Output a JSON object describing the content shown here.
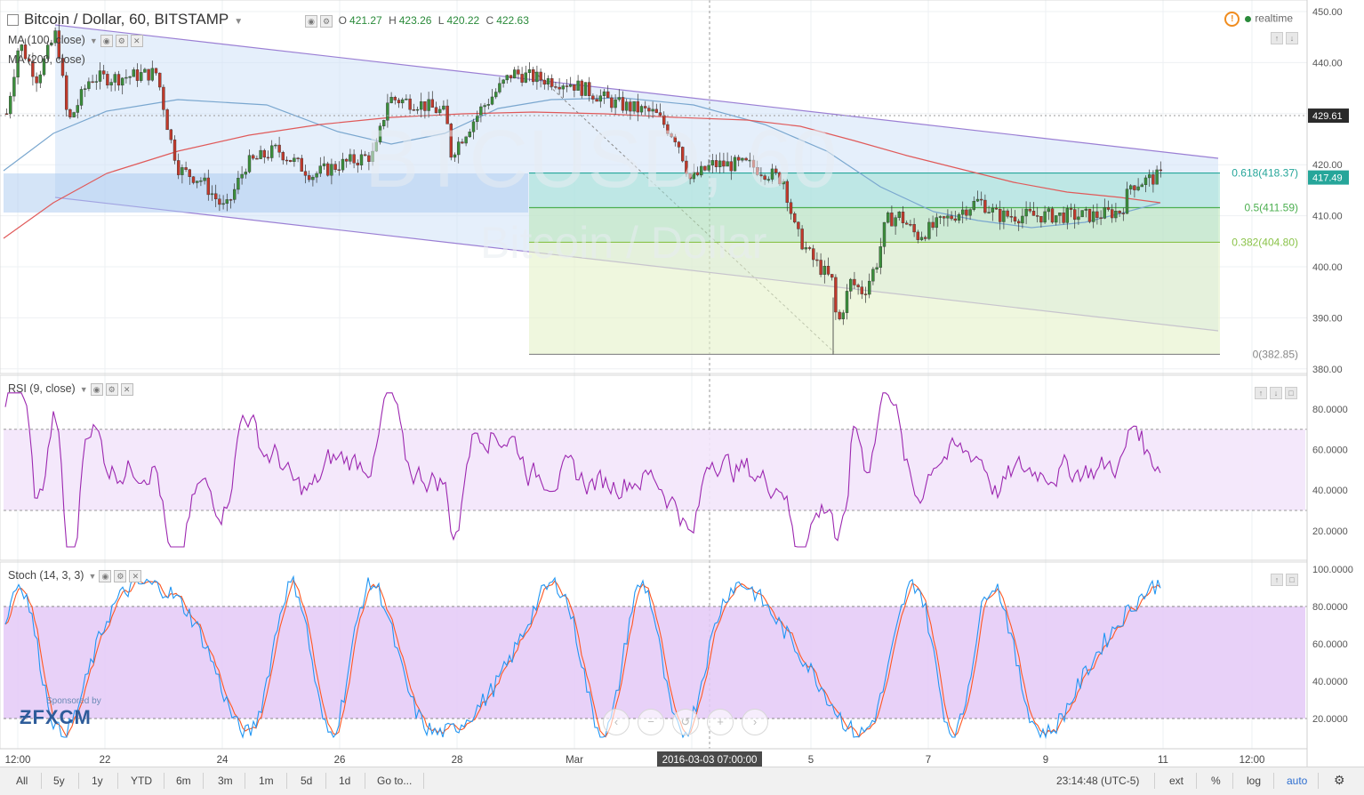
{
  "header": {
    "symbol": "Bitcoin / Dollar, 60, BITSTAMP",
    "ohlc": {
      "o_label": "O",
      "o": "421.27",
      "h_label": "H",
      "h": "423.26",
      "l_label": "L",
      "l": "420.22",
      "c_label": "C",
      "c": "422.63"
    },
    "ma100": "MA (100, close)",
    "ma200": "MA (200, close)",
    "realtime": "realtime"
  },
  "watermark": {
    "line1": "BTCUSD, 60",
    "line2": "Bitcoin / Dollar"
  },
  "main_axis": {
    "ticks": [
      "450.00",
      "440.00",
      "430.00",
      "420.00",
      "410.00",
      "400.00",
      "390.00",
      "380.00"
    ],
    "tick_values": [
      450,
      440,
      430,
      420,
      410,
      400,
      390,
      380
    ],
    "last_price": "429.61",
    "current_price": "417.49",
    "colors": {
      "last": "#2a2a2a",
      "current": "#26a69a"
    }
  },
  "fib": [
    {
      "label": "0.618(418.37)",
      "value": 418.37,
      "color": "#26a69a"
    },
    {
      "label": "0.5(411.59)",
      "value": 411.59,
      "color": "#4caf50"
    },
    {
      "label": "0.382(404.80)",
      "value": 404.8,
      "color": "#8bc34a"
    },
    {
      "label": "0(382.85)",
      "value": 382.85,
      "color": "#888888"
    }
  ],
  "rsi": {
    "label": "RSI (9, close)",
    "ticks": [
      "80.0000",
      "60.0000",
      "40.0000",
      "20.0000"
    ],
    "tick_values": [
      80,
      60,
      40,
      20
    ],
    "bands": [
      70,
      30
    ],
    "color": "#9c27b0"
  },
  "stoch": {
    "label": "Stoch (14, 3, 3)",
    "ticks": [
      "100.0000",
      "80.0000",
      "60.0000",
      "40.0000",
      "20.0000"
    ],
    "tick_values": [
      100,
      80,
      60,
      40,
      20
    ],
    "bands": [
      80,
      20
    ],
    "colors": {
      "k": "#2196f3",
      "d": "#ff5722"
    }
  },
  "time_axis": {
    "labels": [
      "12:00",
      "22",
      "24",
      "26",
      "28",
      "Mar",
      "3",
      "5",
      "7",
      "9",
      "11",
      "12:00"
    ],
    "crosshair_label": "2016-03-03 07:00:00"
  },
  "sponsor": {
    "small": "Sponsored by",
    "brand": "FXCM"
  },
  "toolbar": {
    "ranges": [
      "All",
      "5y",
      "1y",
      "YTD",
      "6m",
      "3m",
      "1m",
      "5d",
      "1d",
      "Go to..."
    ],
    "clock": "23:14:48 (UTC-5)",
    "options": [
      "ext",
      "%",
      "log",
      "auto"
    ]
  },
  "icons": [
    "settings-icon",
    "eye-icon",
    "close-icon",
    "warning-icon",
    "arrow-up-icon",
    "arrow-down-icon",
    "maximize-icon",
    "chevron-left-icon",
    "chevron-right-icon",
    "zoom-in-icon",
    "zoom-out-icon",
    "reset-icon",
    "gear-icon"
  ]
}
